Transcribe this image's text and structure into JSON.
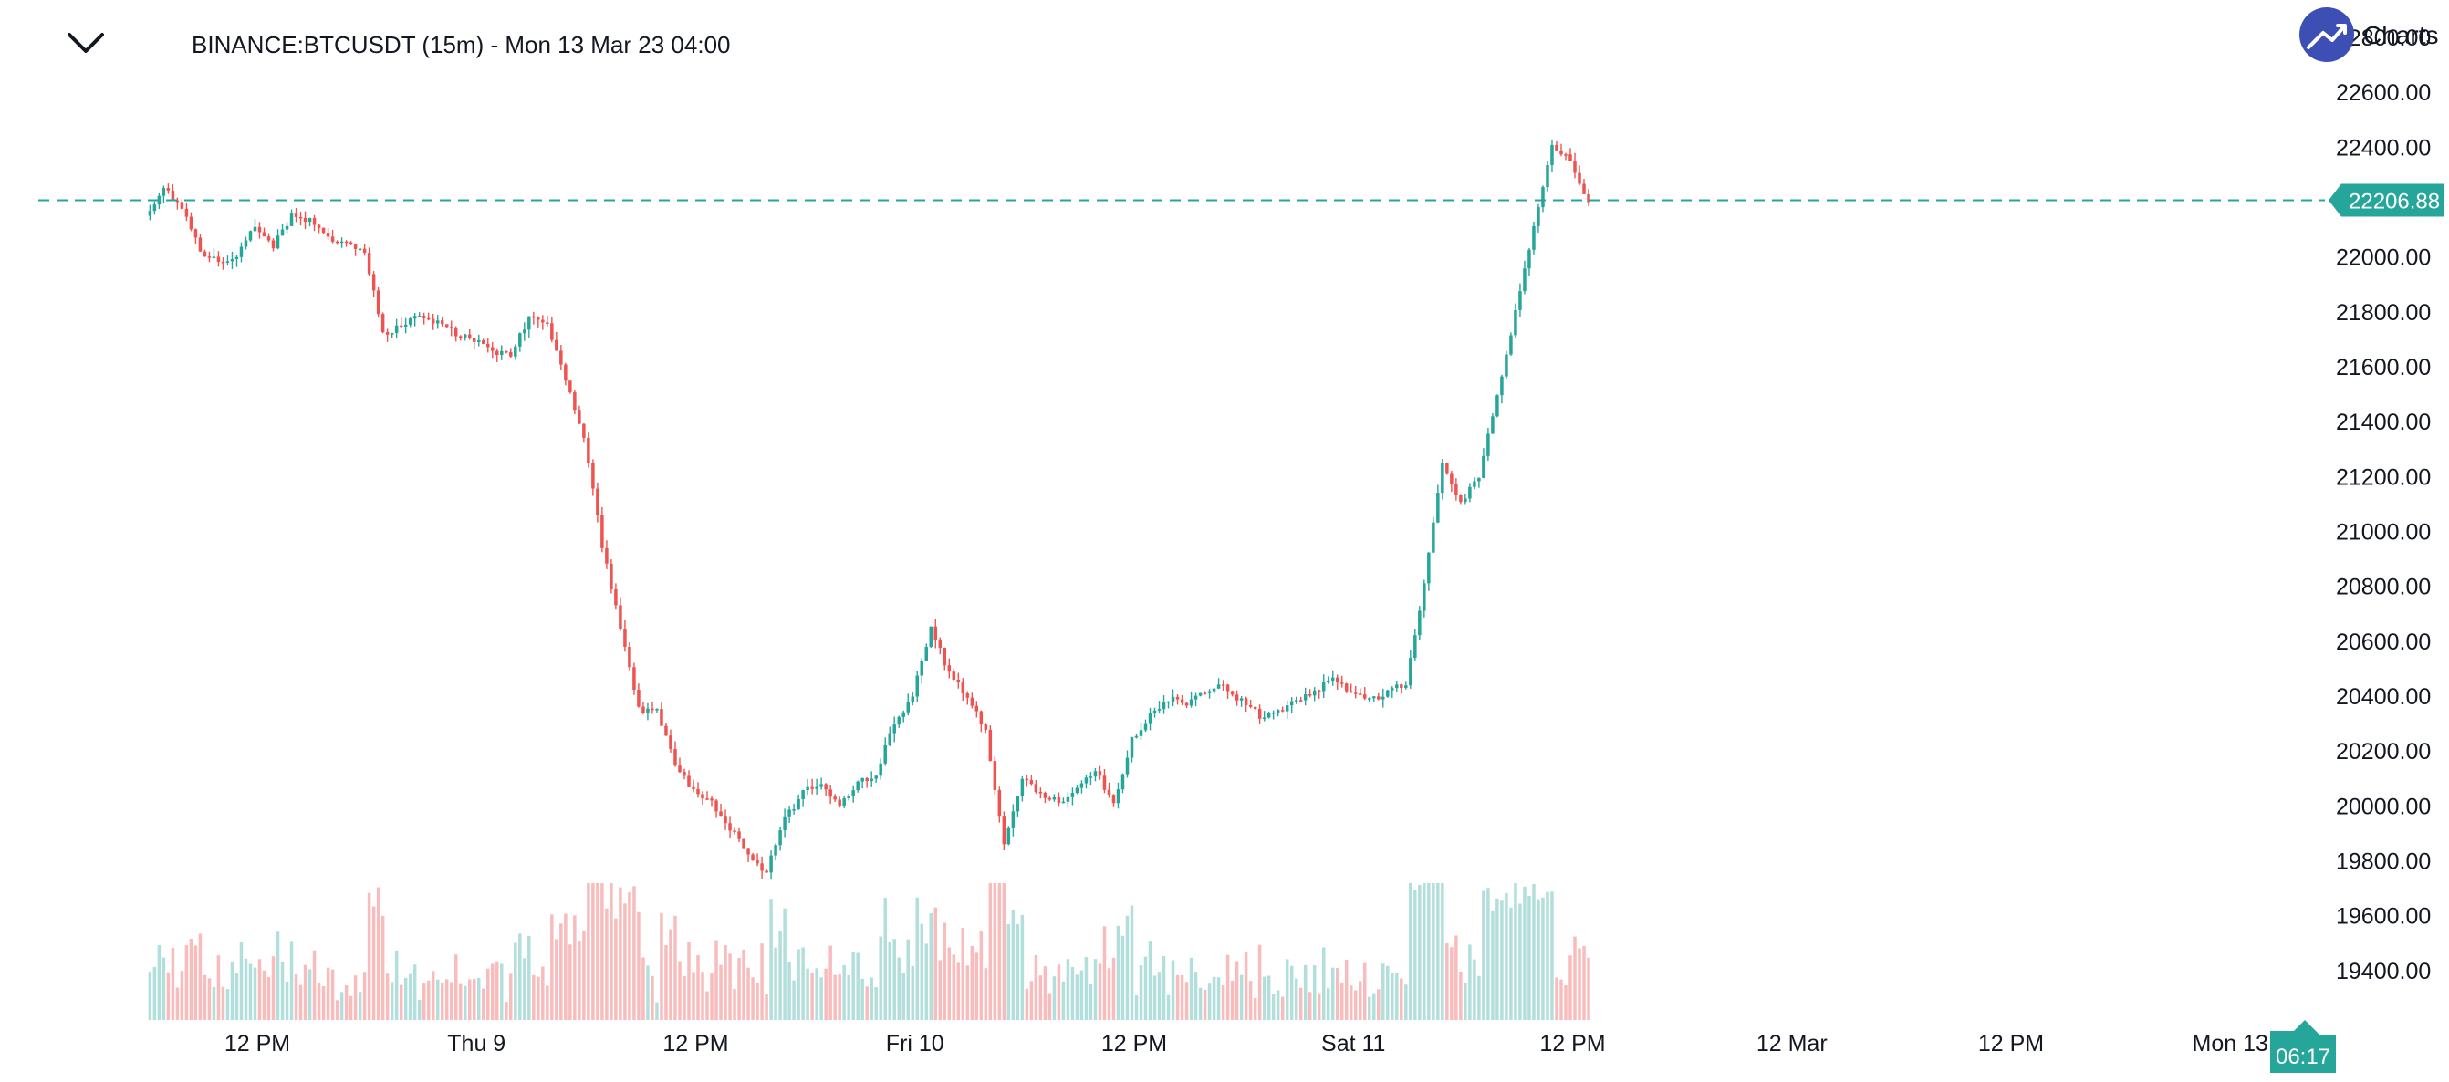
{
  "header": {
    "title": "BINANCE:BTCUSDT (15m) - Mon 13 Mar 23 04:00",
    "collapse_icon": "chevron-down-icon"
  },
  "branding": {
    "label": "Charts",
    "icon": "trend-up-icon",
    "color": "#3d4fb5"
  },
  "colors": {
    "up": "#26a69a",
    "down": "#ef5350",
    "up_volume": "#b2dfdb",
    "down_volume": "#f8bcbc",
    "grid": "#ffffff",
    "axis_text": "#131722"
  },
  "chart_data": {
    "type": "candlestick",
    "symbol": "BINANCE:BTCUSDT",
    "interval": "15m",
    "title": "BINANCE:BTCUSDT (15m) - Mon 13 Mar 23 04:00",
    "price_ticks": [
      "22800.00",
      "22600.00",
      "22400.00",
      "22206.88",
      "22000.00",
      "21800.00",
      "21600.00",
      "21400.00",
      "21200.00",
      "21000.00",
      "20800.00",
      "20600.00",
      "20400.00",
      "20200.00",
      "20000.00",
      "19800.00",
      "19600.00",
      "19400.00"
    ],
    "price_tick_values": [
      22800,
      22600,
      22400,
      22000,
      21800,
      21600,
      21400,
      21200,
      21000,
      20800,
      20600,
      20400,
      20200,
      20000,
      19800,
      19600,
      19400
    ],
    "ylim": [
      19220,
      22870
    ],
    "time_ticks": [
      "12 PM",
      "Thu 9",
      "12 PM",
      "Fri 10",
      "12 PM",
      "Sat 11",
      "12 PM",
      "12 Mar",
      "12 PM",
      "Mon 13"
    ],
    "time_tick_hours": [
      12,
      24,
      36,
      48,
      60,
      72,
      84,
      96,
      108,
      120
    ],
    "start_hour": 6,
    "bar_minutes": 15,
    "last_price": 22206.88,
    "last_price_label": "22206.88",
    "countdown": "06:17",
    "price_path": [
      [
        6,
        22150
      ],
      [
        7,
        22250
      ],
      [
        8,
        22180
      ],
      [
        9,
        22020
      ],
      [
        10,
        21980
      ],
      [
        11,
        22000
      ],
      [
        12,
        22110
      ],
      [
        13,
        22040
      ],
      [
        14,
        22150
      ],
      [
        15,
        22130
      ],
      [
        16,
        22070
      ],
      [
        17,
        22060
      ],
      [
        18,
        22020
      ],
      [
        19,
        21720
      ],
      [
        20,
        21750
      ],
      [
        21,
        21790
      ],
      [
        22,
        21760
      ],
      [
        23,
        21720
      ],
      [
        24,
        21700
      ],
      [
        25,
        21660
      ],
      [
        26,
        21640
      ],
      [
        27,
        21780
      ],
      [
        28,
        21760
      ],
      [
        29,
        21560
      ],
      [
        30,
        21350
      ],
      [
        31,
        20950
      ],
      [
        32,
        20650
      ],
      [
        33,
        20350
      ],
      [
        34,
        20350
      ],
      [
        35,
        20150
      ],
      [
        36,
        20050
      ],
      [
        37,
        20010
      ],
      [
        38,
        19920
      ],
      [
        39,
        19820
      ],
      [
        40,
        19760
      ],
      [
        41,
        19950
      ],
      [
        42,
        20050
      ],
      [
        43,
        20080
      ],
      [
        44,
        20010
      ],
      [
        45,
        20080
      ],
      [
        46,
        20120
      ],
      [
        47,
        20300
      ],
      [
        48,
        20400
      ],
      [
        49,
        20650
      ],
      [
        50,
        20480
      ],
      [
        51,
        20400
      ],
      [
        52,
        20270
      ],
      [
        53,
        19850
      ],
      [
        54,
        20100
      ],
      [
        55,
        20050
      ],
      [
        56,
        20010
      ],
      [
        57,
        20060
      ],
      [
        58,
        20130
      ],
      [
        59,
        20010
      ],
      [
        60,
        20240
      ],
      [
        61,
        20330
      ],
      [
        62,
        20390
      ],
      [
        63,
        20370
      ],
      [
        64,
        20420
      ],
      [
        65,
        20440
      ],
      [
        66,
        20380
      ],
      [
        67,
        20330
      ],
      [
        68,
        20340
      ],
      [
        69,
        20380
      ],
      [
        70,
        20420
      ],
      [
        71,
        20460
      ],
      [
        72,
        20420
      ],
      [
        73,
        20390
      ],
      [
        74,
        20410
      ],
      [
        75,
        20450
      ],
      [
        76,
        20810
      ],
      [
        77,
        21250
      ],
      [
        78,
        21100
      ],
      [
        79,
        21200
      ],
      [
        80,
        21500
      ],
      [
        81,
        21800
      ],
      [
        82,
        22100
      ],
      [
        83,
        22400
      ],
      [
        84,
        22350
      ],
      [
        85,
        22200
      ]
    ],
    "volume_range": [
      0,
      100
    ]
  }
}
